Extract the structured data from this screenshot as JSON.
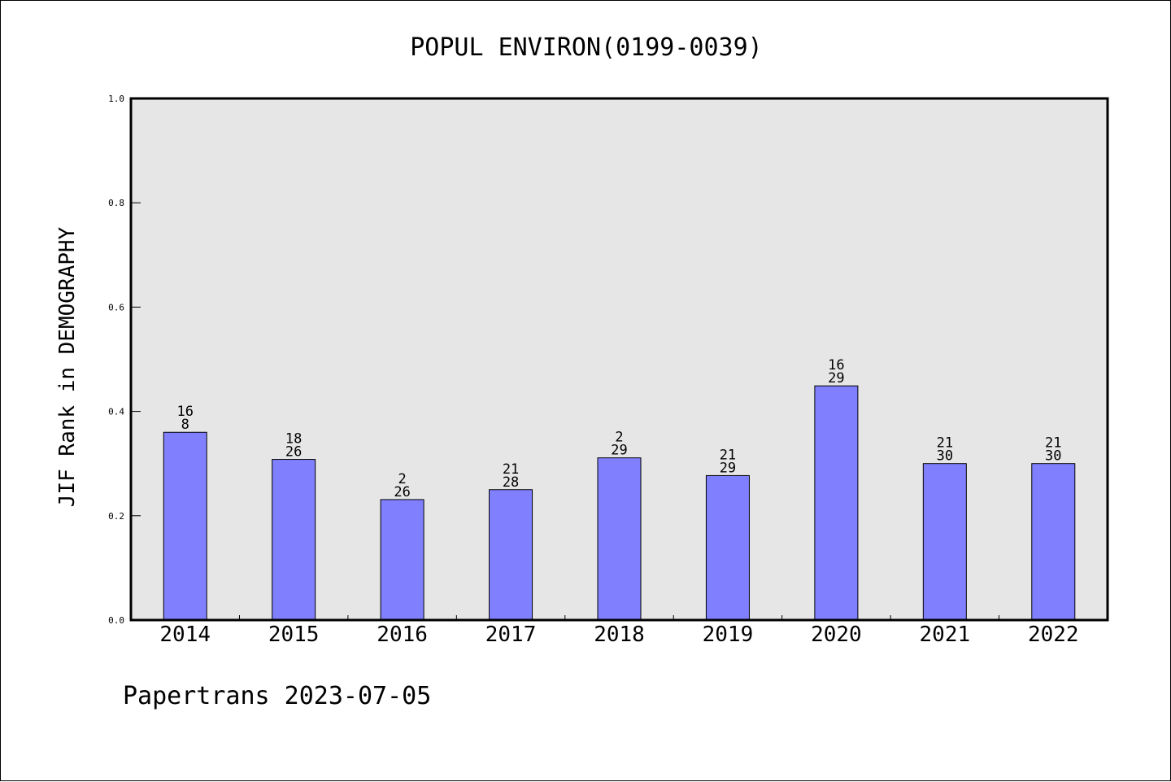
{
  "chart_data": {
    "type": "bar",
    "title": "POPUL ENVIRON(0199-0039)",
    "ylabel": "JIF Rank in DEMOGRAPHY",
    "xlabel": "",
    "categories": [
      "2014",
      "2015",
      "2016",
      "2017",
      "2018",
      "2019",
      "2020",
      "2021",
      "2022"
    ],
    "values": [
      0.36,
      0.308,
      0.231,
      0.25,
      0.311,
      0.277,
      0.449,
      0.3,
      0.3
    ],
    "label_top": [
      "16",
      "18",
      "2",
      "21",
      "2",
      "21",
      "16",
      "21",
      "21"
    ],
    "label_bottom": [
      "8",
      "26",
      "26",
      "28",
      "29",
      "29",
      "29",
      "30",
      "30"
    ],
    "ylim": [
      0,
      1.0
    ],
    "yticks": [
      0.0,
      0.2,
      0.4,
      0.6,
      0.8,
      1.0
    ],
    "ytick_labels": [
      "0.0",
      "0.2",
      "0.4",
      "0.6",
      "0.8",
      "1.0"
    ],
    "grid": false,
    "legend": "none",
    "colors": {
      "bar": "#8080ff",
      "plot_background": "#e6e6e6",
      "border": "#000000"
    }
  },
  "footer": {
    "credit": "Papertrans 2023-07-05"
  }
}
